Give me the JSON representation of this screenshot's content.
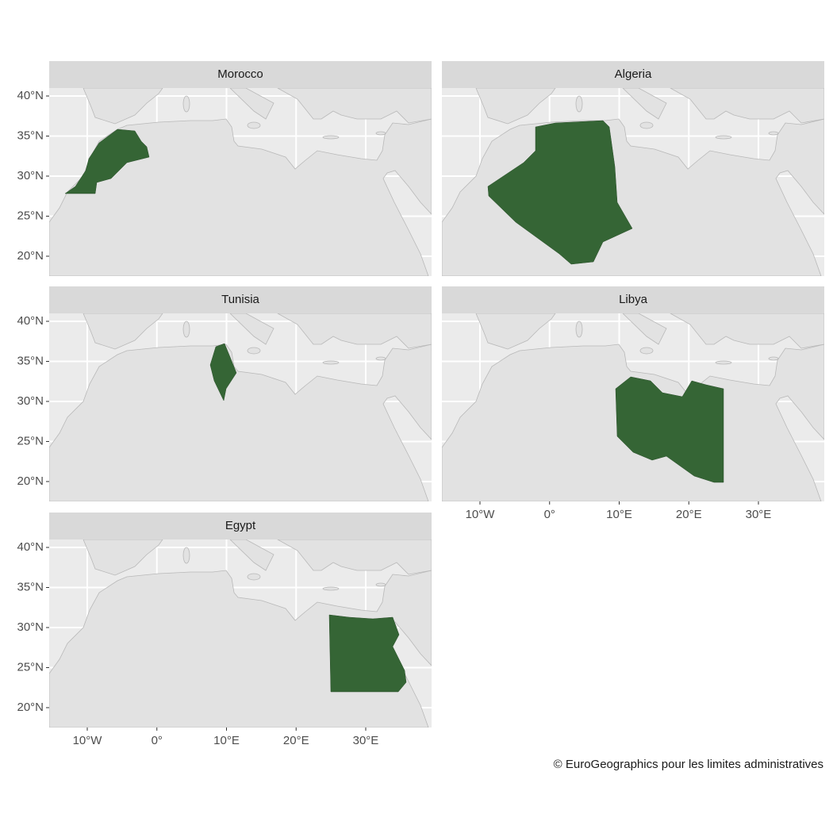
{
  "chart_data": {
    "type": "map",
    "facets": [
      {
        "title": "Morocco"
      },
      {
        "title": "Algeria"
      },
      {
        "title": "Tunisia"
      },
      {
        "title": "Libya"
      },
      {
        "title": "Egypt"
      }
    ],
    "xlim": [
      -15.47,
      39.46
    ],
    "ylim": [
      17.52,
      40.99
    ],
    "xticks": [
      {
        "value": -10,
        "label": "10°W"
      },
      {
        "value": 0,
        "label": "0°"
      },
      {
        "value": 10,
        "label": "10°E"
      },
      {
        "value": 20,
        "label": "20°E"
      },
      {
        "value": 30,
        "label": "30°E"
      }
    ],
    "yticks": [
      {
        "value": 20,
        "label": "20°N"
      },
      {
        "value": 25,
        "label": "25°N"
      },
      {
        "value": 30,
        "label": "30°N"
      },
      {
        "value": 35,
        "label": "35°N"
      },
      {
        "value": 40,
        "label": "40°N"
      }
    ],
    "grid": true,
    "color": "#356535",
    "caption": "© EuroGeographics pour les limites administratives"
  }
}
